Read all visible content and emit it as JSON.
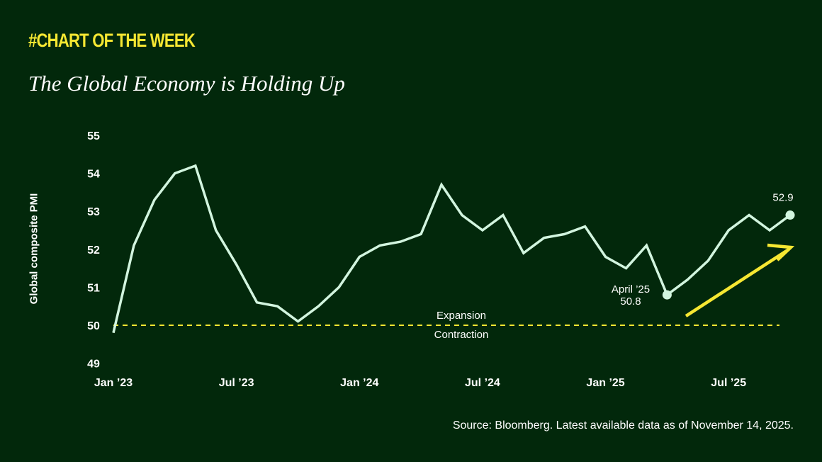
{
  "header": {
    "kicker": "#CHART OF THE WEEK",
    "title": "The Global Economy is Holding Up"
  },
  "source": "Source: Bloomberg. Latest available data as of November 14, 2025.",
  "colors": {
    "background": "#02280b",
    "line": "#d2f5df",
    "threshold": "#f6e732",
    "arrow": "#f6e732"
  },
  "chart_data": {
    "type": "line",
    "title": "",
    "xlabel": "",
    "ylabel": "Global composite PMI",
    "ylim": [
      49,
      55
    ],
    "yticks": [
      "49",
      "50",
      "51",
      "52",
      "53",
      "54",
      "55"
    ],
    "xticks": [
      {
        "label": "Jan ’23",
        "index": 0
      },
      {
        "label": "Jul ’23",
        "index": 6
      },
      {
        "label": "Jan ’24",
        "index": 12
      },
      {
        "label": "Jul ’24",
        "index": 18
      },
      {
        "label": "Jan ’25",
        "index": 24
      },
      {
        "label": "Jul ’25",
        "index": 30
      }
    ],
    "x": [
      "2023-01",
      "2023-02",
      "2023-03",
      "2023-04",
      "2023-05",
      "2023-06",
      "2023-07",
      "2023-08",
      "2023-09",
      "2023-10",
      "2023-11",
      "2023-12",
      "2024-01",
      "2024-02",
      "2024-03",
      "2024-04",
      "2024-05",
      "2024-06",
      "2024-07",
      "2024-08",
      "2024-09",
      "2024-10",
      "2024-11",
      "2024-12",
      "2025-01",
      "2025-02",
      "2025-03",
      "2025-04",
      "2025-05",
      "2025-06",
      "2025-07",
      "2025-08",
      "2025-09",
      "2025-10"
    ],
    "values": [
      49.8,
      52.1,
      53.3,
      54.0,
      54.2,
      52.5,
      51.6,
      50.6,
      50.5,
      50.1,
      50.5,
      51.0,
      51.8,
      52.1,
      52.2,
      52.4,
      53.7,
      52.9,
      52.5,
      52.9,
      51.9,
      52.3,
      52.4,
      52.6,
      51.8,
      51.5,
      52.1,
      50.8,
      51.2,
      51.7,
      52.5,
      52.9,
      52.5,
      52.9
    ],
    "grid": false,
    "threshold": {
      "value": 50,
      "above_label": "Expansion",
      "below_label": "Contraction"
    },
    "annotations": [
      {
        "index": 27,
        "text_line1": "April ’25",
        "text_line2": "50.8"
      },
      {
        "index": 33,
        "text_line1": "52.9"
      }
    ]
  }
}
